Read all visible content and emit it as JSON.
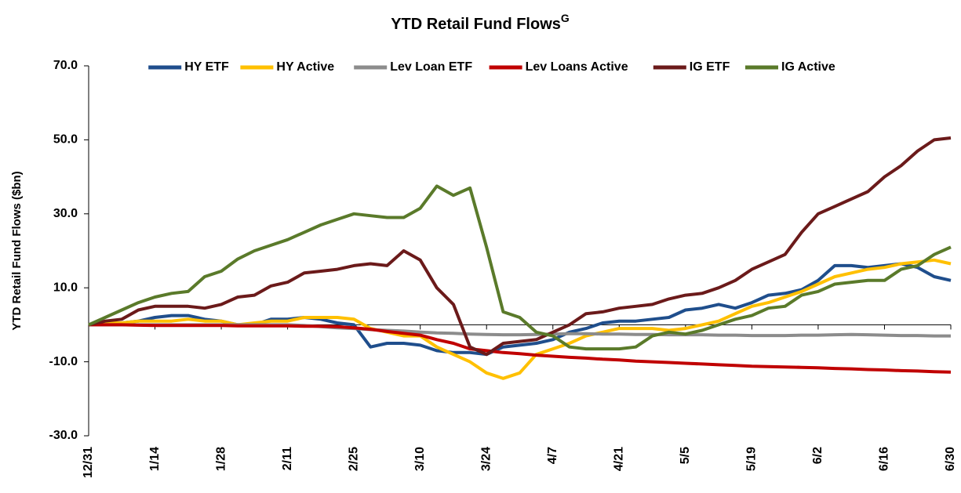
{
  "chart_data": {
    "type": "line",
    "title": "YTD Retail Fund Flows",
    "title_superscript": "G",
    "y_label": "YTD Retail Fund Flows ($bn)",
    "categories": [
      "12/31",
      null,
      null,
      null,
      "1/14",
      null,
      null,
      null,
      "1/28",
      null,
      null,
      null,
      "2/11",
      null,
      null,
      null,
      "2/25",
      null,
      null,
      null,
      "3/10",
      null,
      null,
      null,
      "3/24",
      null,
      null,
      null,
      "4/7",
      null,
      null,
      null,
      "4/21",
      null,
      null,
      null,
      "5/5",
      null,
      null,
      null,
      "5/19",
      null,
      null,
      null,
      "6/2",
      null,
      null,
      null,
      "6/16",
      null,
      null,
      null,
      "6/30"
    ],
    "ylim": [
      -30,
      70
    ],
    "yticks": [
      {
        "value": -30,
        "label": "-30.0"
      },
      {
        "value": -10,
        "label": "-10.0"
      },
      {
        "value": 10,
        "label": "10.0"
      },
      {
        "value": 30,
        "label": "30.0"
      },
      {
        "value": 50,
        "label": "50.0"
      },
      {
        "value": 70,
        "label": "70.0"
      }
    ],
    "legend": "top",
    "series": [
      {
        "name": "HY ETF",
        "color": "#1f4e8c",
        "values": [
          0,
          0.5,
          0.5,
          1,
          2,
          2.5,
          2.5,
          1.5,
          1,
          0,
          0,
          1.5,
          1.5,
          2,
          1.5,
          0.5,
          0,
          -6,
          -5,
          -5,
          -5.5,
          -7,
          -7.5,
          -7.5,
          -8,
          -6,
          -5.5,
          -5,
          -4,
          -2,
          -1,
          0.5,
          1,
          1,
          1.5,
          2,
          4,
          4.5,
          5.5,
          4.5,
          6,
          8,
          8.5,
          9.5,
          12,
          16,
          16,
          15.5,
          16,
          16.5,
          15.5,
          13,
          12
        ]
      },
      {
        "name": "HY Active",
        "color": "#ffc000",
        "values": [
          0,
          0.5,
          0.5,
          1,
          1,
          1,
          1.5,
          1,
          1,
          0,
          0.5,
          1,
          1,
          2,
          2,
          2,
          1.5,
          -1,
          -2,
          -3,
          -3,
          -6,
          -8,
          -10,
          -13,
          -14.5,
          -13,
          -8,
          -6.5,
          -5,
          -3,
          -2,
          -1,
          -1,
          -1,
          -1.5,
          -1,
          0,
          1,
          3,
          5,
          6,
          7.5,
          9,
          11,
          13,
          14,
          15,
          15.5,
          16.5,
          17,
          17.5,
          16.5
        ]
      },
      {
        "name": "Lev Loan ETF",
        "color": "#8c8c8c",
        "values": [
          0,
          0,
          0,
          0,
          0,
          0,
          0,
          0,
          0,
          0,
          0,
          0,
          0,
          -0.2,
          -0.5,
          -0.8,
          -1,
          -1.3,
          -1.5,
          -1.7,
          -2,
          -2.2,
          -2.3,
          -2.5,
          -2.6,
          -2.7,
          -2.7,
          -2.6,
          -2.5,
          -2.4,
          -2.4,
          -2.5,
          -2.5,
          -2.6,
          -2.6,
          -2.7,
          -2.7,
          -2.7,
          -2.8,
          -2.8,
          -2.9,
          -2.9,
          -2.9,
          -2.8,
          -2.8,
          -2.7,
          -2.6,
          -2.7,
          -2.8,
          -2.9,
          -2.9,
          -3,
          -3
        ]
      },
      {
        "name": "Lev Loans Active",
        "color": "#c00000",
        "values": [
          0,
          0,
          0,
          -0.1,
          -0.2,
          -0.2,
          -0.2,
          -0.2,
          -0.2,
          -0.3,
          -0.3,
          -0.3,
          -0.3,
          -0.4,
          -0.4,
          -0.5,
          -0.8,
          -1.2,
          -1.8,
          -2.3,
          -2.8,
          -4,
          -5,
          -6.5,
          -7,
          -7.5,
          -7.8,
          -8.2,
          -8.5,
          -8.8,
          -9,
          -9.3,
          -9.5,
          -9.8,
          -10,
          -10.2,
          -10.4,
          -10.6,
          -10.8,
          -11,
          -11.2,
          -11.3,
          -11.4,
          -11.5,
          -11.6,
          -11.8,
          -11.9,
          -12.1,
          -12.2,
          -12.4,
          -12.5,
          -12.7,
          -12.8
        ]
      },
      {
        "name": "IG ETF",
        "color": "#6b1a1a",
        "values": [
          0,
          1,
          1.5,
          4,
          5,
          5,
          5,
          4.5,
          5.5,
          7.5,
          8,
          10.5,
          11.5,
          14,
          14.5,
          15,
          16,
          16.5,
          16,
          20,
          17.5,
          10,
          5.5,
          -6,
          -8,
          -5,
          -4.5,
          -4,
          -2,
          0,
          3,
          3.5,
          4.5,
          5,
          5.5,
          7,
          8,
          8.5,
          10,
          12,
          15,
          17,
          19,
          25,
          30,
          32,
          34,
          36,
          40,
          43,
          47,
          50,
          50.5
        ]
      },
      {
        "name": "IG Active",
        "color": "#5a7a2a",
        "values": [
          0,
          2,
          4,
          6,
          7.5,
          8.5,
          9,
          13,
          14.5,
          17.8,
          20,
          21.5,
          23,
          25,
          27,
          28.5,
          30,
          29.5,
          29,
          29,
          31.5,
          37.5,
          35,
          37,
          21,
          3.5,
          2,
          -2,
          -3,
          -6,
          -6.5,
          -6.5,
          -6.5,
          -6,
          -3,
          -2,
          -2.5,
          -1.5,
          0,
          1.5,
          2.5,
          4.5,
          5,
          8,
          9,
          11,
          11.5,
          12,
          12,
          15,
          16,
          19,
          21
        ]
      }
    ]
  }
}
